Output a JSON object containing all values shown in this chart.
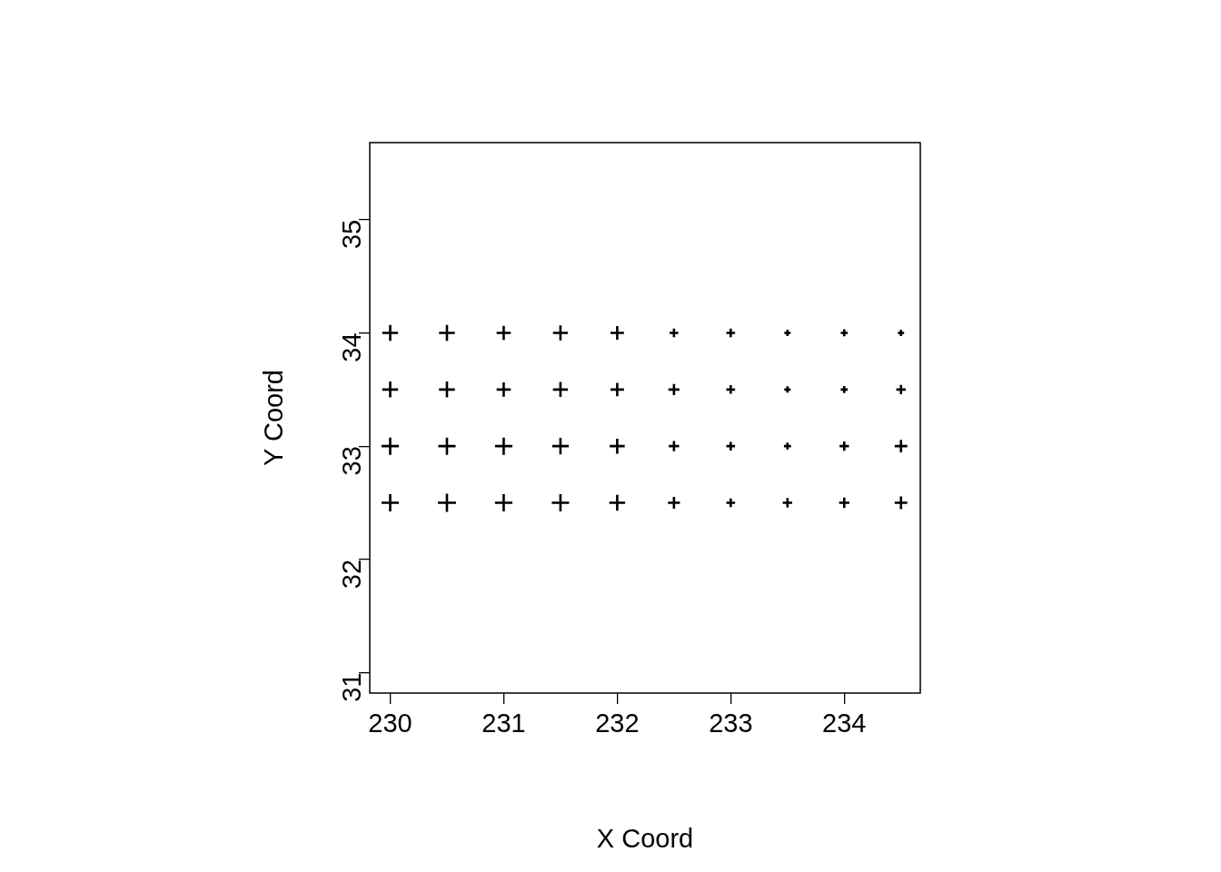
{
  "chart_data": {
    "type": "bubble",
    "xlabel": "X Coord",
    "ylabel": "Y Coord",
    "marker": "cross",
    "grid": false,
    "legend": false,
    "xlim": [
      229.82,
      234.67
    ],
    "ylim": [
      30.82,
      35.68
    ],
    "xticks": [
      230,
      231,
      232,
      233,
      234
    ],
    "yticks": [
      31,
      32,
      33,
      34,
      35
    ],
    "series": [
      {
        "color": "#000000",
        "x": [
          230,
          230.5,
          231,
          231.5,
          232,
          232.5,
          233,
          233.5,
          234,
          234.5,
          230,
          230.5,
          231,
          231.5,
          232,
          232.5,
          233,
          233.5,
          234,
          234.5,
          230,
          230.5,
          231,
          231.5,
          232,
          232.5,
          233,
          233.5,
          234,
          234.5,
          230,
          230.5,
          231,
          231.5,
          232,
          232.5,
          233,
          233.5,
          234,
          234.5
        ],
        "values": [
          34,
          34,
          34,
          34,
          34,
          34,
          34,
          34,
          34,
          34,
          33.5,
          33.5,
          33.5,
          33.5,
          33.5,
          33.5,
          33.5,
          33.5,
          33.5,
          33.5,
          33,
          33,
          33,
          33,
          33,
          33,
          33,
          33,
          33,
          33,
          32.5,
          32.5,
          32.5,
          32.5,
          32.5,
          32.5,
          32.5,
          32.5,
          32.5,
          32.5
        ],
        "sizes": [
          0.76,
          0.76,
          0.61,
          0.68,
          0.55,
          0.23,
          0.23,
          0.12,
          0.15,
          0.12,
          0.76,
          0.76,
          0.61,
          0.68,
          0.55,
          0.37,
          0.23,
          0.12,
          0.15,
          0.27,
          0.91,
          0.91,
          0.91,
          0.83,
          0.68,
          0.32,
          0.23,
          0.15,
          0.27,
          0.48,
          0.91,
          1,
          0.91,
          0.91,
          0.76,
          0.43,
          0.23,
          0.27,
          0.32,
          0.48
        ]
      }
    ]
  }
}
